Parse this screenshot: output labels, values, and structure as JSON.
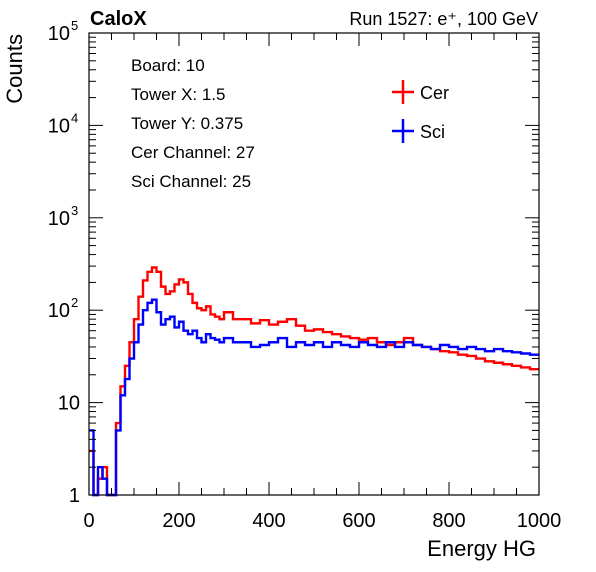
{
  "chart_data": {
    "type": "line",
    "title_left": "CaloX",
    "title_right": "Run 1527: e⁺, 100 GeV",
    "xlabel": "Energy HG",
    "ylabel": "Counts",
    "xlim": [
      0,
      1000
    ],
    "ylim": [
      1,
      100000
    ],
    "yscale": "log",
    "x_ticks": [
      0,
      200,
      400,
      600,
      800,
      1000
    ],
    "y_tick_labels": [
      {
        "value": 1,
        "label": "1"
      },
      {
        "value": 10,
        "label": "10"
      },
      {
        "value": 100,
        "label": "10",
        "exp": "2"
      },
      {
        "value": 1000,
        "label": "10",
        "exp": "3"
      },
      {
        "value": 10000,
        "label": "10",
        "exp": "4"
      },
      {
        "value": 100000,
        "label": "10",
        "exp": "5"
      }
    ],
    "info": [
      "Board: 10",
      "Tower X: 1.5",
      "Tower Y: 0.375",
      "Cer Channel: 27",
      "Sci Channel: 25"
    ],
    "legend_position": "top-right",
    "series": [
      {
        "name": "Cer",
        "color": "#ff0000",
        "x": [
          0,
          10,
          20,
          30,
          40,
          50,
          60,
          70,
          80,
          90,
          100,
          110,
          120,
          130,
          140,
          150,
          160,
          170,
          180,
          190,
          200,
          210,
          220,
          230,
          240,
          250,
          260,
          270,
          280,
          290,
          300,
          320,
          340,
          360,
          380,
          400,
          420,
          440,
          460,
          480,
          500,
          520,
          540,
          560,
          580,
          600,
          620,
          640,
          660,
          680,
          700,
          720,
          740,
          760,
          780,
          800,
          820,
          840,
          860,
          880,
          900,
          920,
          940,
          960,
          980,
          1000
        ],
        "y": [
          3,
          1,
          1.5,
          2,
          1,
          1,
          6,
          15,
          25,
          45,
          80,
          140,
          210,
          260,
          290,
          260,
          180,
          150,
          160,
          190,
          215,
          200,
          150,
          120,
          105,
          100,
          110,
          90,
          85,
          80,
          95,
          80,
          80,
          72,
          78,
          70,
          75,
          80,
          68,
          60,
          62,
          58,
          55,
          52,
          50,
          48,
          50,
          45,
          42,
          45,
          50,
          42,
          40,
          38,
          36,
          35,
          33,
          32,
          30,
          28,
          27,
          26,
          25,
          24,
          23,
          20
        ]
      },
      {
        "name": "Sci",
        "color": "#0000ff",
        "x": [
          0,
          10,
          20,
          30,
          40,
          50,
          60,
          70,
          80,
          90,
          100,
          110,
          120,
          130,
          140,
          150,
          160,
          170,
          180,
          190,
          200,
          210,
          220,
          230,
          240,
          250,
          260,
          270,
          280,
          290,
          300,
          320,
          340,
          360,
          380,
          400,
          420,
          440,
          460,
          480,
          500,
          520,
          540,
          560,
          580,
          600,
          620,
          640,
          660,
          680,
          700,
          720,
          740,
          760,
          780,
          800,
          820,
          840,
          860,
          880,
          900,
          920,
          940,
          960,
          980,
          1000
        ],
        "y": [
          5,
          1,
          2,
          1.5,
          1,
          1,
          5,
          12,
          18,
          30,
          45,
          70,
          100,
          120,
          130,
          95,
          70,
          80,
          85,
          65,
          75,
          60,
          55,
          60,
          50,
          45,
          55,
          50,
          48,
          45,
          50,
          45,
          45,
          40,
          42,
          45,
          50,
          40,
          45,
          42,
          45,
          40,
          45,
          42,
          40,
          45,
          42,
          40,
          45,
          40,
          45,
          42,
          40,
          38,
          42,
          40,
          38,
          40,
          38,
          36,
          38,
          36,
          35,
          34,
          33,
          33
        ]
      }
    ]
  }
}
